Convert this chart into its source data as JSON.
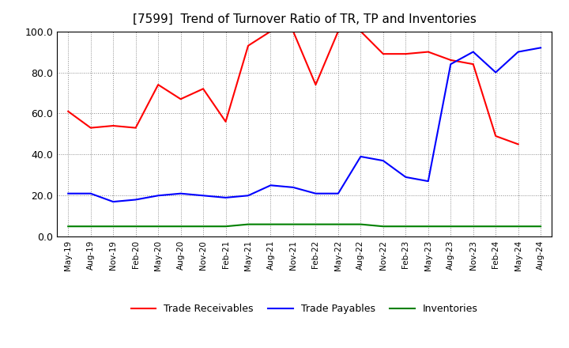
{
  "title": "[7599]  Trend of Turnover Ratio of TR, TP and Inventories",
  "x_labels": [
    "May-19",
    "Aug-19",
    "Nov-19",
    "Feb-20",
    "May-20",
    "Aug-20",
    "Nov-20",
    "Feb-21",
    "May-21",
    "Aug-21",
    "Nov-21",
    "Feb-22",
    "May-22",
    "Aug-22",
    "Nov-22",
    "Feb-23",
    "May-23",
    "Aug-23",
    "Nov-23",
    "Feb-24",
    "May-24",
    "Aug-24"
  ],
  "trade_receivables": [
    61,
    53,
    54,
    53,
    74,
    67,
    72,
    56,
    93,
    100,
    100,
    74,
    100,
    100,
    89,
    89,
    90,
    86,
    84,
    49,
    45,
    null
  ],
  "trade_payables": [
    21,
    21,
    17,
    18,
    20,
    21,
    20,
    19,
    20,
    25,
    24,
    21,
    21,
    39,
    37,
    29,
    27,
    84,
    90,
    80,
    90,
    92
  ],
  "inventories": [
    5,
    5,
    5,
    5,
    5,
    5,
    5,
    5,
    6,
    6,
    6,
    6,
    6,
    6,
    5,
    5,
    5,
    5,
    5,
    5,
    5,
    5
  ],
  "ylim": [
    0,
    100
  ],
  "yticks": [
    0.0,
    20.0,
    40.0,
    60.0,
    80.0,
    100.0
  ],
  "color_tr": "#FF0000",
  "color_tp": "#0000FF",
  "color_inv": "#008000",
  "background_color": "#FFFFFF",
  "grid_color": "#888888",
  "title_fontsize": 11,
  "legend_labels": [
    "Trade Receivables",
    "Trade Payables",
    "Inventories"
  ]
}
